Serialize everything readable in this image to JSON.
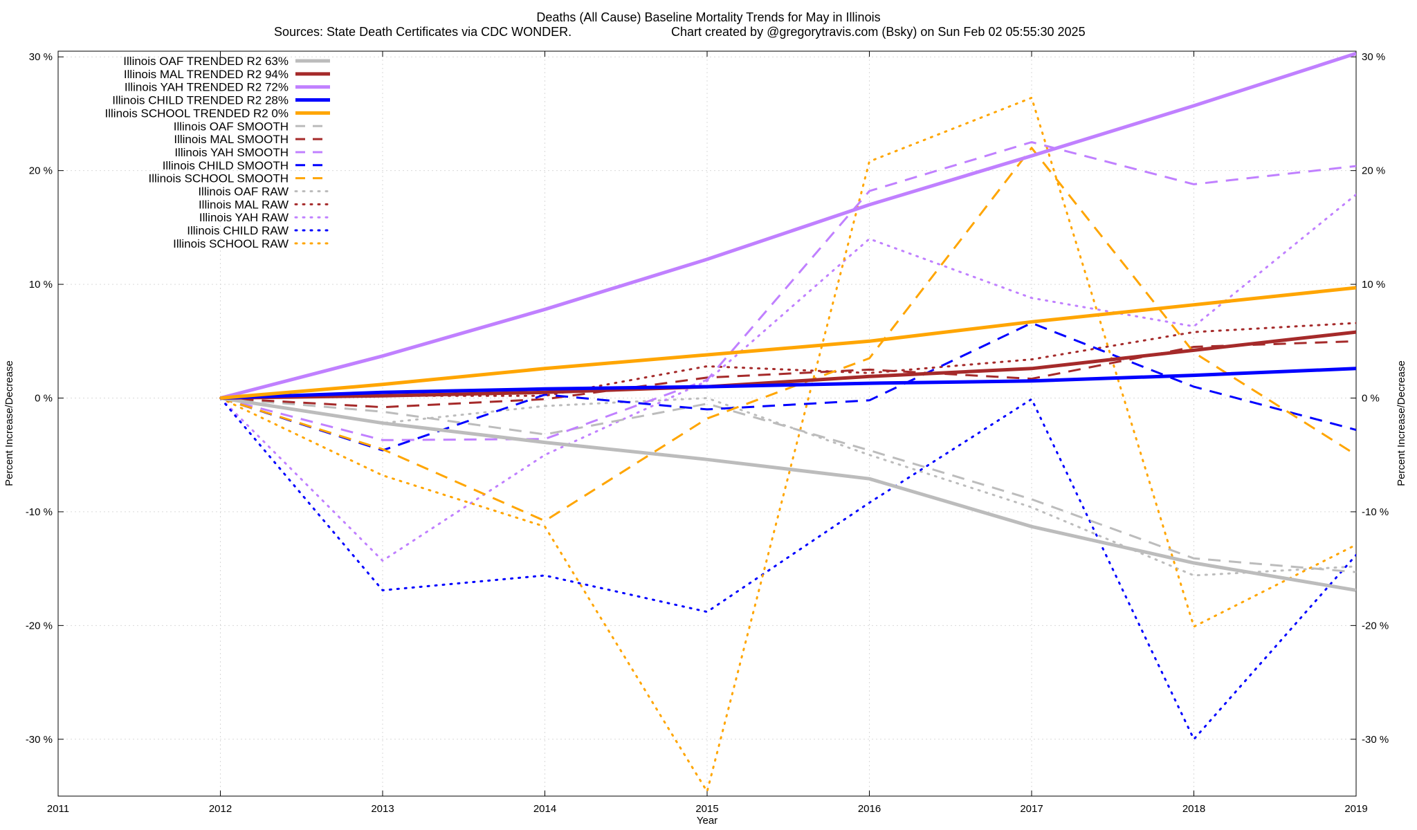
{
  "chart_data": {
    "type": "line",
    "title": "Deaths (All Cause)  Baseline Mortality Trends for May in Illinois",
    "subtitle_left": "Sources: State Death Certificates via CDC WONDER.",
    "subtitle_right": "Chart created by @gregorytravis.com (Bsky) on Sun Feb 02 05:55:30 2025",
    "xlabel": "Year",
    "ylabel": "Percent Increase/Decrease",
    "y2label": "Percent Increase/Decrease",
    "xlim": [
      2011,
      2019
    ],
    "ylim": [
      -35,
      30.5
    ],
    "x_ticks": [
      "2011",
      "2012",
      "2013",
      "2014",
      "2015",
      "2016",
      "2017",
      "2018",
      "2019"
    ],
    "y_ticks": [
      {
        "value": 30,
        "label": "30 %"
      },
      {
        "value": 20,
        "label": "20 %"
      },
      {
        "value": 10,
        "label": "10 %"
      },
      {
        "value": 0,
        "label": "0 %"
      },
      {
        "value": -10,
        "label": "-10 %"
      },
      {
        "value": -20,
        "label": "-20 %"
      },
      {
        "value": -30,
        "label": "-30 %"
      }
    ],
    "grid": true,
    "legend_position": "top-left",
    "x": [
      2012,
      2013,
      2014,
      2015,
      2016,
      2017,
      2018,
      2019
    ],
    "series": [
      {
        "name": "Illinois OAF TRENDED R2  63%",
        "style": "solid",
        "color": "#bcbcbc",
        "values": [
          0,
          -2.2,
          -3.9,
          -5.4,
          -7.1,
          -11.3,
          -14.5,
          -16.9
        ]
      },
      {
        "name": "Illinois MAL TRENDED R2  94%",
        "style": "solid",
        "color": "#a52a2a",
        "values": [
          0,
          0.2,
          0.5,
          1.0,
          1.9,
          2.6,
          4.2,
          5.8
        ]
      },
      {
        "name": "Illinois YAH TRENDED R2  72%",
        "style": "solid",
        "color": "#c080ff",
        "values": [
          0,
          3.7,
          7.8,
          12.2,
          17.0,
          21.3,
          25.7,
          30.3
        ]
      },
      {
        "name": "Illinois CHILD TRENDED R2  28%",
        "style": "solid",
        "color": "#0000ff",
        "values": [
          0,
          0.5,
          0.8,
          1.0,
          1.3,
          1.5,
          2.0,
          2.6
        ]
      },
      {
        "name": "Illinois SCHOOL TRENDED R2   0%",
        "style": "solid",
        "color": "#ffa500",
        "values": [
          0,
          1.2,
          2.6,
          3.8,
          5.0,
          6.7,
          8.2,
          9.7
        ]
      },
      {
        "name": "Illinois OAF SMOOTH",
        "style": "dashed",
        "color": "#bcbcbc",
        "values": [
          0,
          -1.2,
          -3.2,
          -0.5,
          -4.6,
          -8.9,
          -14.1,
          -15.3
        ]
      },
      {
        "name": "Illinois MAL SMOOTH",
        "style": "dashed",
        "color": "#a52a2a",
        "values": [
          0,
          -0.8,
          -0.1,
          1.8,
          2.5,
          1.7,
          4.5,
          5.0
        ]
      },
      {
        "name": "Illinois YAH SMOOTH",
        "style": "dashed",
        "color": "#c080ff",
        "values": [
          0,
          -3.7,
          -3.6,
          1.6,
          18.2,
          22.5,
          18.8,
          20.4
        ]
      },
      {
        "name": "Illinois CHILD SMOOTH",
        "style": "dashed",
        "color": "#0000ff",
        "values": [
          0,
          -4.6,
          0.3,
          -1.0,
          -0.2,
          6.6,
          1.0,
          -2.8
        ]
      },
      {
        "name": "Illinois SCHOOL SMOOTH",
        "style": "dashed",
        "color": "#ffa500",
        "values": [
          0,
          -4.5,
          -10.8,
          -1.8,
          3.5,
          22.0,
          4.0,
          -5.0
        ]
      },
      {
        "name": "Illinois OAF RAW",
        "style": "dotted",
        "color": "#bcbcbc",
        "values": [
          0,
          -2.2,
          -0.7,
          0.0,
          -5.0,
          -9.6,
          -15.6,
          -14.8
        ]
      },
      {
        "name": "Illinois MAL RAW",
        "style": "dotted",
        "color": "#a52a2a",
        "values": [
          0,
          0.2,
          0.2,
          2.8,
          2.2,
          3.4,
          5.8,
          6.6
        ]
      },
      {
        "name": "Illinois YAH RAW",
        "style": "dotted",
        "color": "#c080ff",
        "values": [
          0,
          -14.3,
          -5.0,
          1.5,
          14.0,
          8.8,
          6.3,
          17.9
        ]
      },
      {
        "name": "Illinois CHILD RAW",
        "style": "dotted",
        "color": "#0000ff",
        "values": [
          0,
          -16.9,
          -15.6,
          -18.8,
          -9.2,
          -0.1,
          -30.0,
          -13.8
        ]
      },
      {
        "name": "Illinois SCHOOL RAW",
        "style": "dotted",
        "color": "#ffa500",
        "values": [
          0,
          -6.8,
          -11.3,
          -34.6,
          20.8,
          26.4,
          -20.1,
          -12.9
        ]
      }
    ]
  }
}
